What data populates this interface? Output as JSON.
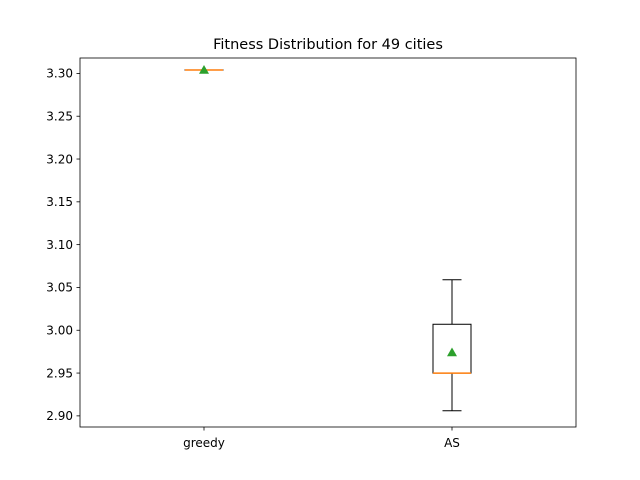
{
  "chart_data": {
    "type": "box",
    "title": "Fitness Distribution for 49 cities",
    "xlabel": "",
    "ylabel": "",
    "ylim": [
      2.887,
      3.318
    ],
    "yticks": [
      2.9,
      2.95,
      3.0,
      3.05,
      3.1,
      3.15,
      3.2,
      3.25,
      3.3
    ],
    "ytick_labels": [
      "2.90",
      "2.95",
      "3.00",
      "3.05",
      "3.10",
      "3.15",
      "3.20",
      "3.25",
      "3.30"
    ],
    "categories": [
      "greedy",
      "AS"
    ],
    "boxes": [
      {
        "label": "greedy",
        "whisker_low": 3.304,
        "q1": 3.304,
        "median": 3.304,
        "q3": 3.304,
        "whisker_high": 3.304,
        "mean": 3.304
      },
      {
        "label": "AS",
        "whisker_low": 2.906,
        "q1": 2.95,
        "median": 2.95,
        "q3": 3.007,
        "whisker_high": 3.059,
        "mean": 2.974
      }
    ],
    "grid": false,
    "colors": {
      "box": "#000000",
      "median": "#ff7f0e",
      "mean": "#2ca02c"
    }
  }
}
